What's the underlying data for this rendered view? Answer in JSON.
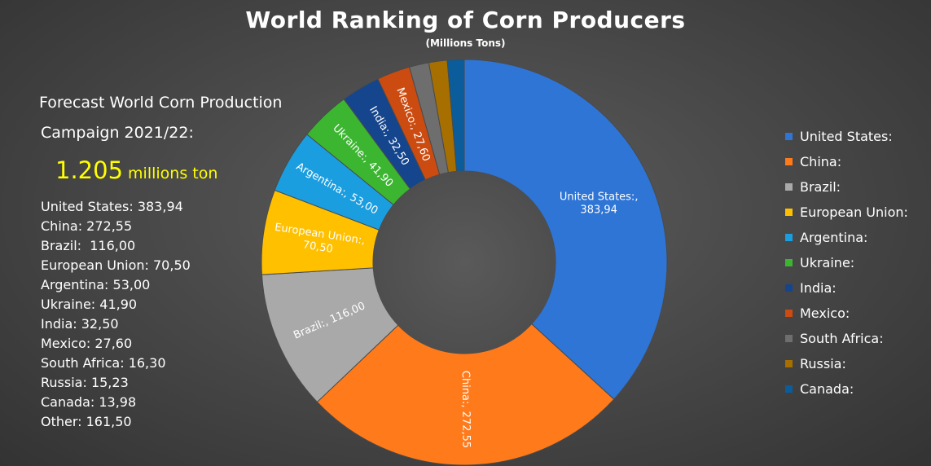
{
  "header": {
    "title": "World Ranking of Corn Producers",
    "subtitle": "(Millions Tons)"
  },
  "info": {
    "line1": "Forecast World Corn Production",
    "line2": "Campaign 2021/22:",
    "total_value": "1.205",
    "total_unit": "millions ton",
    "list": [
      "United States: 383,94",
      "China: 272,55",
      "Brazil:  116,00",
      "European Union: 70,50",
      "Argentina: 53,00",
      "Ukraine: 41,90",
      "India: 32,50",
      "Mexico: 27,60",
      "South Africa: 16,30",
      "Russia: 15,23",
      "Canada: 13,98",
      "Other: 161,50"
    ]
  },
  "chart_data": {
    "type": "pie",
    "title": "World Ranking of Corn Producers",
    "subtitle": "(Millions Tons)",
    "legend_position": "right",
    "categories": [
      "United States:",
      "China:",
      "Brazil:",
      "European Union:",
      "Argentina:",
      "Ukraine:",
      "India:",
      "Mexico:",
      "South Africa:",
      "Russia:",
      "Canada:"
    ],
    "values": [
      383.94,
      272.55,
      116.0,
      70.5,
      53.0,
      41.9,
      32.5,
      27.6,
      16.3,
      15.23,
      13.98
    ],
    "data_labels": [
      "United States:, 383,94",
      "China:, 272,55",
      "Brazil:, 116,00",
      "European Union:, 70,50",
      "Argentina:, 53,00",
      "Ukraine:, 41,90",
      "India:, 32,50",
      "Mexico:, 27,60",
      "",
      "",
      ""
    ],
    "colors": [
      "#2e75d6",
      "#ff7a1a",
      "#a9a9a9",
      "#ffc000",
      "#1a9ee0",
      "#3cb531",
      "#15458c",
      "#cc4b10",
      "#6e6e6e",
      "#a66f00",
      "#0a5d9a"
    ]
  }
}
